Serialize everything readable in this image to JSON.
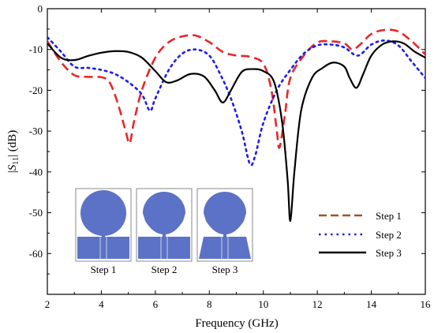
{
  "chart_data": {
    "type": "line",
    "xlabel": "Frequency (GHz)",
    "ylabel": "|S11| (dB)",
    "xlim": [
      2,
      16
    ],
    "ylim": [
      -70,
      0
    ],
    "xticks": [
      2,
      4,
      6,
      8,
      10,
      12,
      14,
      16
    ],
    "yticks": [
      0,
      -10,
      -20,
      -30,
      -40,
      -50,
      -60
    ],
    "grid": false,
    "legend_position": "bottom-right",
    "series": [
      {
        "name": "Step 1",
        "color": "#e8262a",
        "style": "dashed",
        "points": [
          [
            2,
            -8
          ],
          [
            2.5,
            -13
          ],
          [
            3,
            -16.3
          ],
          [
            3.5,
            -16.7
          ],
          [
            4,
            -16.8
          ],
          [
            4.3,
            -18
          ],
          [
            4.6,
            -23
          ],
          [
            4.9,
            -30
          ],
          [
            5.05,
            -33
          ],
          [
            5.2,
            -28
          ],
          [
            5.5,
            -20
          ],
          [
            6,
            -12
          ],
          [
            6.5,
            -8.2
          ],
          [
            7,
            -6.8
          ],
          [
            7.5,
            -6.6
          ],
          [
            8,
            -8.2
          ],
          [
            8.5,
            -10.6
          ],
          [
            9,
            -11.5
          ],
          [
            9.5,
            -11.8
          ],
          [
            10,
            -13.5
          ],
          [
            10.3,
            -20
          ],
          [
            10.5,
            -30
          ],
          [
            10.6,
            -34
          ],
          [
            10.8,
            -26
          ],
          [
            11,
            -17
          ],
          [
            11.5,
            -11.5
          ],
          [
            12,
            -8.3
          ],
          [
            12.5,
            -8
          ],
          [
            13,
            -8.5
          ],
          [
            13.3,
            -10
          ],
          [
            13.6,
            -8.7
          ],
          [
            14,
            -6.2
          ],
          [
            14.5,
            -5.2
          ],
          [
            15,
            -5.6
          ],
          [
            15.5,
            -8
          ],
          [
            16,
            -11.2
          ]
        ]
      },
      {
        "name": "Step 2",
        "color": "#1c1cf0",
        "style": "dotted",
        "points": [
          [
            2,
            -7
          ],
          [
            2.5,
            -10.5
          ],
          [
            3,
            -14.2
          ],
          [
            3.5,
            -14.5
          ],
          [
            4,
            -15
          ],
          [
            4.5,
            -16
          ],
          [
            5,
            -18
          ],
          [
            5.5,
            -21
          ],
          [
            5.8,
            -25
          ],
          [
            6,
            -22
          ],
          [
            6.5,
            -15
          ],
          [
            7,
            -11
          ],
          [
            7.5,
            -10
          ],
          [
            8,
            -11.5
          ],
          [
            8.4,
            -16
          ],
          [
            8.8,
            -22
          ],
          [
            9.2,
            -30
          ],
          [
            9.5,
            -38
          ],
          [
            9.7,
            -36
          ],
          [
            10,
            -28
          ],
          [
            10.5,
            -20
          ],
          [
            11,
            -15
          ],
          [
            11.5,
            -11
          ],
          [
            12,
            -9
          ],
          [
            12.5,
            -8.8
          ],
          [
            13,
            -9.5
          ],
          [
            13.5,
            -11.5
          ],
          [
            14,
            -8.8
          ],
          [
            14.5,
            -7.8
          ],
          [
            15,
            -9
          ],
          [
            15.5,
            -13
          ],
          [
            16,
            -17
          ]
        ]
      },
      {
        "name": "Step 3",
        "color": "#000000",
        "style": "solid",
        "points": [
          [
            2,
            -8.5
          ],
          [
            2.5,
            -12
          ],
          [
            3,
            -12.6
          ],
          [
            3.5,
            -11.6
          ],
          [
            4,
            -10.8
          ],
          [
            4.5,
            -10.4
          ],
          [
            5,
            -10.6
          ],
          [
            5.5,
            -12
          ],
          [
            6,
            -15.3
          ],
          [
            6.4,
            -18
          ],
          [
            6.8,
            -17.6
          ],
          [
            7.3,
            -16
          ],
          [
            7.8,
            -16.6
          ],
          [
            8.2,
            -20
          ],
          [
            8.5,
            -23
          ],
          [
            8.8,
            -20
          ],
          [
            9.2,
            -15.5
          ],
          [
            9.6,
            -14.8
          ],
          [
            10,
            -15.3
          ],
          [
            10.4,
            -18
          ],
          [
            10.7,
            -28
          ],
          [
            10.9,
            -42
          ],
          [
            11,
            -52
          ],
          [
            11.15,
            -40
          ],
          [
            11.4,
            -25
          ],
          [
            11.8,
            -17
          ],
          [
            12.2,
            -14.5
          ],
          [
            12.6,
            -13.2
          ],
          [
            13,
            -14.2
          ],
          [
            13.2,
            -17
          ],
          [
            13.45,
            -19.4
          ],
          [
            13.7,
            -16
          ],
          [
            14,
            -11.5
          ],
          [
            14.4,
            -8.8
          ],
          [
            14.8,
            -8
          ],
          [
            15.2,
            -8.5
          ],
          [
            15.6,
            -10.5
          ],
          [
            16,
            -12
          ]
        ]
      }
    ],
    "inset": {
      "captions": [
        "Step 1",
        "Step 2",
        "Step 3"
      ]
    }
  }
}
